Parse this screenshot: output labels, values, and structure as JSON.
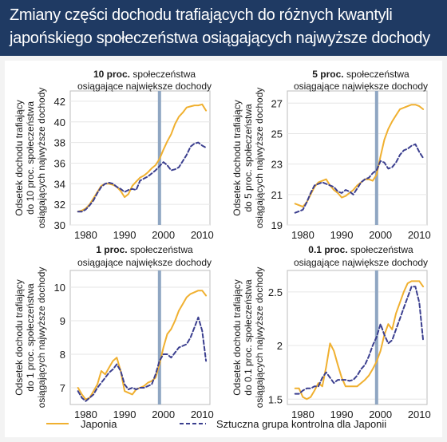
{
  "title": {
    "line1": "Zmiany części dochodu trafiających do różnych kwantyli",
    "line2": "japońskiego społeczeństwa osiągających najwyższe dochody"
  },
  "legend": {
    "japan": "Japonia",
    "synthetic": "Sztuczna grupa kontrolna dla Japonii"
  },
  "colors": {
    "japan": "#f0b030",
    "synthetic": "#3b3f8f",
    "marker": "#8fa6c2",
    "title_bg": "#1f3a63"
  },
  "chart_data": [
    {
      "type": "line",
      "title_bold": "10 proc.",
      "title_rest": " społeczeństwa",
      "title_line2": "osiągające największe dochody",
      "ylabel_lines": [
        "Odsetek dochodu trafiający",
        "do 10 proc. społeczeństwa",
        "osiągających najwyższe dochody"
      ],
      "xlim": [
        1976,
        2012
      ],
      "ylim": [
        30,
        43
      ],
      "xticks": [
        1980,
        1990,
        2000,
        2010
      ],
      "yticks": [
        30,
        32,
        34,
        36,
        38,
        40,
        42
      ],
      "ytick_labels": [
        "30",
        "32",
        "34",
        "36",
        "38",
        "40",
        "42"
      ],
      "marker_year": 1999,
      "series": [
        {
          "key": "japan",
          "x": [
            1978,
            1979,
            1980,
            1981,
            1982,
            1983,
            1984,
            1985,
            1986,
            1987,
            1988,
            1989,
            1990,
            1991,
            1992,
            1993,
            1994,
            1995,
            1996,
            1997,
            1998,
            1999,
            2000,
            2001,
            2002,
            2003,
            2004,
            2005,
            2006,
            2007,
            2008,
            2009,
            2010,
            2011
          ],
          "y": [
            31.3,
            31.4,
            31.6,
            32.0,
            32.6,
            33.2,
            33.8,
            34.0,
            34.0,
            33.9,
            33.7,
            33.3,
            32.7,
            33.0,
            33.8,
            34.2,
            34.6,
            34.8,
            35.1,
            35.5,
            35.8,
            36.4,
            37.3,
            38.1,
            38.8,
            39.8,
            40.5,
            40.9,
            41.4,
            41.5,
            41.6,
            41.6,
            41.7,
            41.1
          ]
        },
        {
          "key": "synthetic",
          "x": [
            1978,
            1979,
            1980,
            1981,
            1982,
            1983,
            1984,
            1985,
            1986,
            1987,
            1988,
            1989,
            1990,
            1991,
            1992,
            1993,
            1994,
            1995,
            1996,
            1997,
            1998,
            1999,
            2000,
            2001,
            2002,
            2003,
            2004,
            2005,
            2006,
            2007,
            2008,
            2009,
            2010,
            2011
          ],
          "y": [
            31.3,
            31.3,
            31.5,
            31.9,
            32.4,
            33.1,
            33.7,
            34.0,
            34.1,
            34.0,
            33.7,
            33.5,
            33.2,
            33.4,
            33.5,
            33.4,
            34.3,
            34.5,
            34.7,
            35.0,
            35.3,
            35.7,
            36.1,
            35.8,
            35.3,
            35.4,
            35.6,
            36.2,
            36.8,
            37.6,
            37.9,
            38.0,
            37.7,
            37.5
          ]
        }
      ]
    },
    {
      "type": "line",
      "title_bold": "5 proc.",
      "title_rest": " społeczeństwa",
      "title_line2": "osiągające największe dochody",
      "ylabel_lines": [
        "Odsetek dochodu trafiający",
        "do 5 proc. społeczeństwa",
        "osiągających najwyższe dochody"
      ],
      "xlim": [
        1976,
        2012
      ],
      "ylim": [
        19,
        27.8
      ],
      "xticks": [
        1980,
        1990,
        2000,
        2010
      ],
      "yticks": [
        19,
        21,
        23,
        25,
        27
      ],
      "ytick_labels": [
        "19",
        "21",
        "23",
        "25",
        "27"
      ],
      "marker_year": 1999,
      "series": [
        {
          "key": "japan",
          "x": [
            1978,
            1979,
            1980,
            1981,
            1982,
            1983,
            1984,
            1985,
            1986,
            1987,
            1988,
            1989,
            1990,
            1991,
            1992,
            1993,
            1994,
            1995,
            1996,
            1997,
            1998,
            1999,
            2000,
            2001,
            2002,
            2003,
            2004,
            2005,
            2006,
            2007,
            2008,
            2009,
            2010,
            2011
          ],
          "y": [
            20.4,
            20.3,
            20.2,
            20.5,
            21.0,
            21.5,
            21.8,
            21.9,
            22.0,
            21.6,
            21.3,
            21.1,
            20.8,
            20.9,
            21.1,
            21.3,
            21.6,
            21.8,
            22.0,
            22.0,
            21.9,
            22.3,
            23.5,
            24.6,
            25.3,
            25.8,
            26.2,
            26.6,
            26.7,
            26.8,
            26.9,
            26.9,
            26.8,
            26.6
          ]
        },
        {
          "key": "synthetic",
          "x": [
            1978,
            1979,
            1980,
            1981,
            1982,
            1983,
            1984,
            1985,
            1986,
            1987,
            1988,
            1989,
            1990,
            1991,
            1992,
            1993,
            1994,
            1995,
            1996,
            1997,
            1998,
            1999,
            2000,
            2001,
            2002,
            2003,
            2004,
            2005,
            2006,
            2007,
            2008,
            2009,
            2010,
            2011
          ],
          "y": [
            19.8,
            19.9,
            20.0,
            20.5,
            21.1,
            21.6,
            21.7,
            21.8,
            21.7,
            21.6,
            21.5,
            21.2,
            21.1,
            21.3,
            21.2,
            21.0,
            21.4,
            21.8,
            22.0,
            22.1,
            22.4,
            22.6,
            23.2,
            23.1,
            22.7,
            22.8,
            23.1,
            23.6,
            23.9,
            24.0,
            24.2,
            24.3,
            23.8,
            23.4
          ]
        }
      ]
    },
    {
      "type": "line",
      "title_bold": "1 proc.",
      "title_rest": " społeczeństwa",
      "title_line2": "osiągające największe dochody",
      "ylabel_lines": [
        "Odsetek dochodu trafiający",
        "do 1 proc. społeczeństwa",
        "osiągających najwyższe dochody"
      ],
      "xlim": [
        1976,
        2012
      ],
      "ylim": [
        6.5,
        10.5
      ],
      "xticks": [
        1980,
        1990,
        2000,
        2010
      ],
      "yticks": [
        7,
        8,
        9,
        10
      ],
      "ytick_labels": [
        "7",
        "8",
        "9",
        "10"
      ],
      "marker_year": 1999,
      "series": [
        {
          "key": "japan",
          "x": [
            1978,
            1979,
            1980,
            1981,
            1982,
            1983,
            1984,
            1985,
            1986,
            1987,
            1988,
            1989,
            1990,
            1991,
            1992,
            1993,
            1994,
            1995,
            1996,
            1997,
            1998,
            1999,
            2000,
            2001,
            2002,
            2003,
            2004,
            2005,
            2006,
            2007,
            2008,
            2009,
            2010,
            2011
          ],
          "y": [
            7.0,
            6.8,
            6.65,
            6.7,
            6.9,
            7.1,
            7.5,
            7.4,
            7.6,
            7.8,
            7.9,
            7.5,
            6.9,
            6.85,
            6.8,
            6.95,
            7.0,
            7.05,
            7.15,
            7.2,
            7.3,
            7.7,
            8.2,
            8.6,
            8.75,
            9.0,
            9.3,
            9.5,
            9.7,
            9.8,
            9.85,
            9.9,
            9.9,
            9.75
          ]
        },
        {
          "key": "synthetic",
          "x": [
            1978,
            1979,
            1980,
            1981,
            1982,
            1983,
            1984,
            1985,
            1986,
            1987,
            1988,
            1989,
            1990,
            1991,
            1992,
            1993,
            1994,
            1995,
            1996,
            1997,
            1998,
            1999,
            2000,
            2001,
            2002,
            2003,
            2004,
            2005,
            2006,
            2007,
            2008,
            2009,
            2010,
            2011
          ],
          "y": [
            6.9,
            6.7,
            6.6,
            6.7,
            6.8,
            7.0,
            7.15,
            7.3,
            7.45,
            7.55,
            7.7,
            7.5,
            7.1,
            6.95,
            7.0,
            6.95,
            7.0,
            7.0,
            7.05,
            7.1,
            7.4,
            7.8,
            8.0,
            8.0,
            7.9,
            8.05,
            8.2,
            8.25,
            8.3,
            8.5,
            8.8,
            9.1,
            8.7,
            7.8
          ]
        }
      ]
    },
    {
      "type": "line",
      "title_bold": "0.1 proc.",
      "title_rest": " społeczeństwa",
      "title_line2": "osiągające największe dochody",
      "ylabel_lines": [
        "Odsetek dochodu trafiający",
        "do 0.1 proc. społeczeństwa",
        "osiągających najwyższe dochody"
      ],
      "xlim": [
        1976,
        2012
      ],
      "ylim": [
        1.45,
        2.7
      ],
      "xticks": [
        1980,
        1990,
        2000,
        2010
      ],
      "yticks": [
        1.5,
        2,
        2.5
      ],
      "ytick_labels": [
        "1.5",
        "2",
        "2.5"
      ],
      "marker_year": 1999,
      "series": [
        {
          "key": "japan",
          "x": [
            1978,
            1979,
            1980,
            1981,
            1982,
            1983,
            1984,
            1985,
            1986,
            1987,
            1988,
            1989,
            1990,
            1991,
            1992,
            1993,
            1994,
            1995,
            1996,
            1997,
            1998,
            1999,
            2000,
            2001,
            2002,
            2003,
            2004,
            2005,
            2006,
            2007,
            2008,
            2009,
            2010,
            2011
          ],
          "y": [
            1.6,
            1.6,
            1.52,
            1.5,
            1.52,
            1.58,
            1.65,
            1.62,
            1.8,
            2.02,
            1.95,
            1.82,
            1.7,
            1.62,
            1.62,
            1.62,
            1.62,
            1.65,
            1.68,
            1.72,
            1.78,
            1.85,
            1.95,
            2.1,
            2.2,
            2.15,
            2.3,
            2.4,
            2.5,
            2.58,
            2.6,
            2.6,
            2.6,
            2.55
          ]
        },
        {
          "key": "synthetic",
          "x": [
            1978,
            1979,
            1980,
            1981,
            1982,
            1983,
            1984,
            1985,
            1986,
            1987,
            1988,
            1989,
            1990,
            1991,
            1992,
            1993,
            1994,
            1995,
            1996,
            1997,
            1998,
            1999,
            2000,
            2001,
            2002,
            2003,
            2004,
            2005,
            2006,
            2007,
            2008,
            2009,
            2010,
            2011
          ],
          "y": [
            1.55,
            1.55,
            1.58,
            1.6,
            1.6,
            1.62,
            1.62,
            1.7,
            1.75,
            1.7,
            1.65,
            1.68,
            1.68,
            1.68,
            1.67,
            1.68,
            1.72,
            1.78,
            1.82,
            1.9,
            2.0,
            2.08,
            2.2,
            2.1,
            2.02,
            2.05,
            2.15,
            2.25,
            2.35,
            2.45,
            2.55,
            2.55,
            2.4,
            2.05
          ]
        }
      ]
    }
  ]
}
